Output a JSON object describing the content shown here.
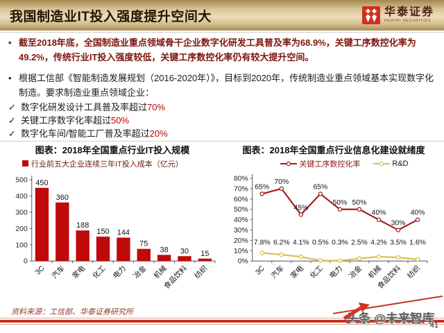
{
  "header": {
    "title": "我国制造业IT投入强度提升空间大",
    "logo": {
      "name": "华泰证券",
      "subtitle": "HUATAI SECURITIES"
    }
  },
  "icons": {
    "bullet": "•",
    "check": "✓"
  },
  "bullets": {
    "b1": "截至2018年底，全国制造业重点领域骨干企业数字化研发工具普及率为68.9%，关键工序数控化率为49.2%，传统行业IT投入强度较低，关键工序数控化率仍有较大提升空间。",
    "b2": "根据工信部《智能制造发展规划（2016-2020年）》，目标到2020年，传统制造业重点领域基本实现数字化制造。要求制造业重点领域企业：",
    "checks": [
      {
        "text": "数字化研发设计工具普及率超过",
        "value": "70%"
      },
      {
        "text": "关键工序数字化率超过",
        "value": "50%"
      },
      {
        "text": "数字化车间/智能工厂普及率超过",
        "value": "20%"
      }
    ]
  },
  "chart_data": [
    {
      "type": "bar",
      "title": "图表：2018年全国重点行业IT投入规模",
      "legend": [
        "行业前五大企业连续三年IT投入成本（亿元）"
      ],
      "categories": [
        "3C",
        "汽车",
        "家电",
        "化工",
        "电力",
        "冶金",
        "机械",
        "食品饮料",
        "纺织"
      ],
      "values": [
        450,
        360,
        188,
        150,
        144,
        75,
        38,
        30,
        15
      ],
      "xlabel": "",
      "ylabel": "",
      "ylim": [
        0,
        500
      ],
      "ytick_step": 100,
      "bar_color": "#c00a0a",
      "grid": false,
      "legend_position": "top-left"
    },
    {
      "type": "line",
      "title": "图表：2018年全国重点行业信息化建设就绪度",
      "categories": [
        "3C",
        "汽车",
        "家电",
        "化工",
        "电力",
        "冶金",
        "机械",
        "食品饮料",
        "纺织"
      ],
      "series": [
        {
          "name": "关键工序数控化率",
          "color": "#9e1f1f",
          "values": [
            65,
            70,
            45,
            65,
            50,
            50,
            40,
            30,
            40
          ],
          "labels": [
            "65%",
            "70%",
            "45%",
            "65%",
            "50%",
            "50%",
            "40%",
            "30%",
            "40%"
          ]
        },
        {
          "name": "R&D",
          "color": "#d4c24f",
          "values": [
            7.8,
            6.2,
            4.1,
            0.5,
            0.3,
            2.5,
            4.2,
            3.5,
            1.6
          ],
          "labels": [
            "7.8%",
            "6.2%",
            "4.1%",
            "0.5%",
            "0.3%",
            "2.5%",
            "4.2%",
            "3.5%",
            "1.6%"
          ]
        }
      ],
      "xlabel": "",
      "ylabel": "",
      "ylim": [
        0,
        80
      ],
      "ytick_step": 10,
      "ytick_suffix": "%",
      "grid": false,
      "legend_position": "top-center"
    }
  ],
  "footer": {
    "source": "资料来源：工信部、华泰证券研究所",
    "watermark": "头条 @未来智库",
    "page_number": "41"
  },
  "colors": {
    "accent_red": "#c00000",
    "bar_red": "#c00a0a",
    "line_red": "#9e1f1f",
    "line_yellow": "#d4c24f",
    "band_red": "#c23522",
    "logo_red": "#d0301e",
    "header_gold": "#d9c497",
    "bullet1_red": "#7d150d"
  }
}
